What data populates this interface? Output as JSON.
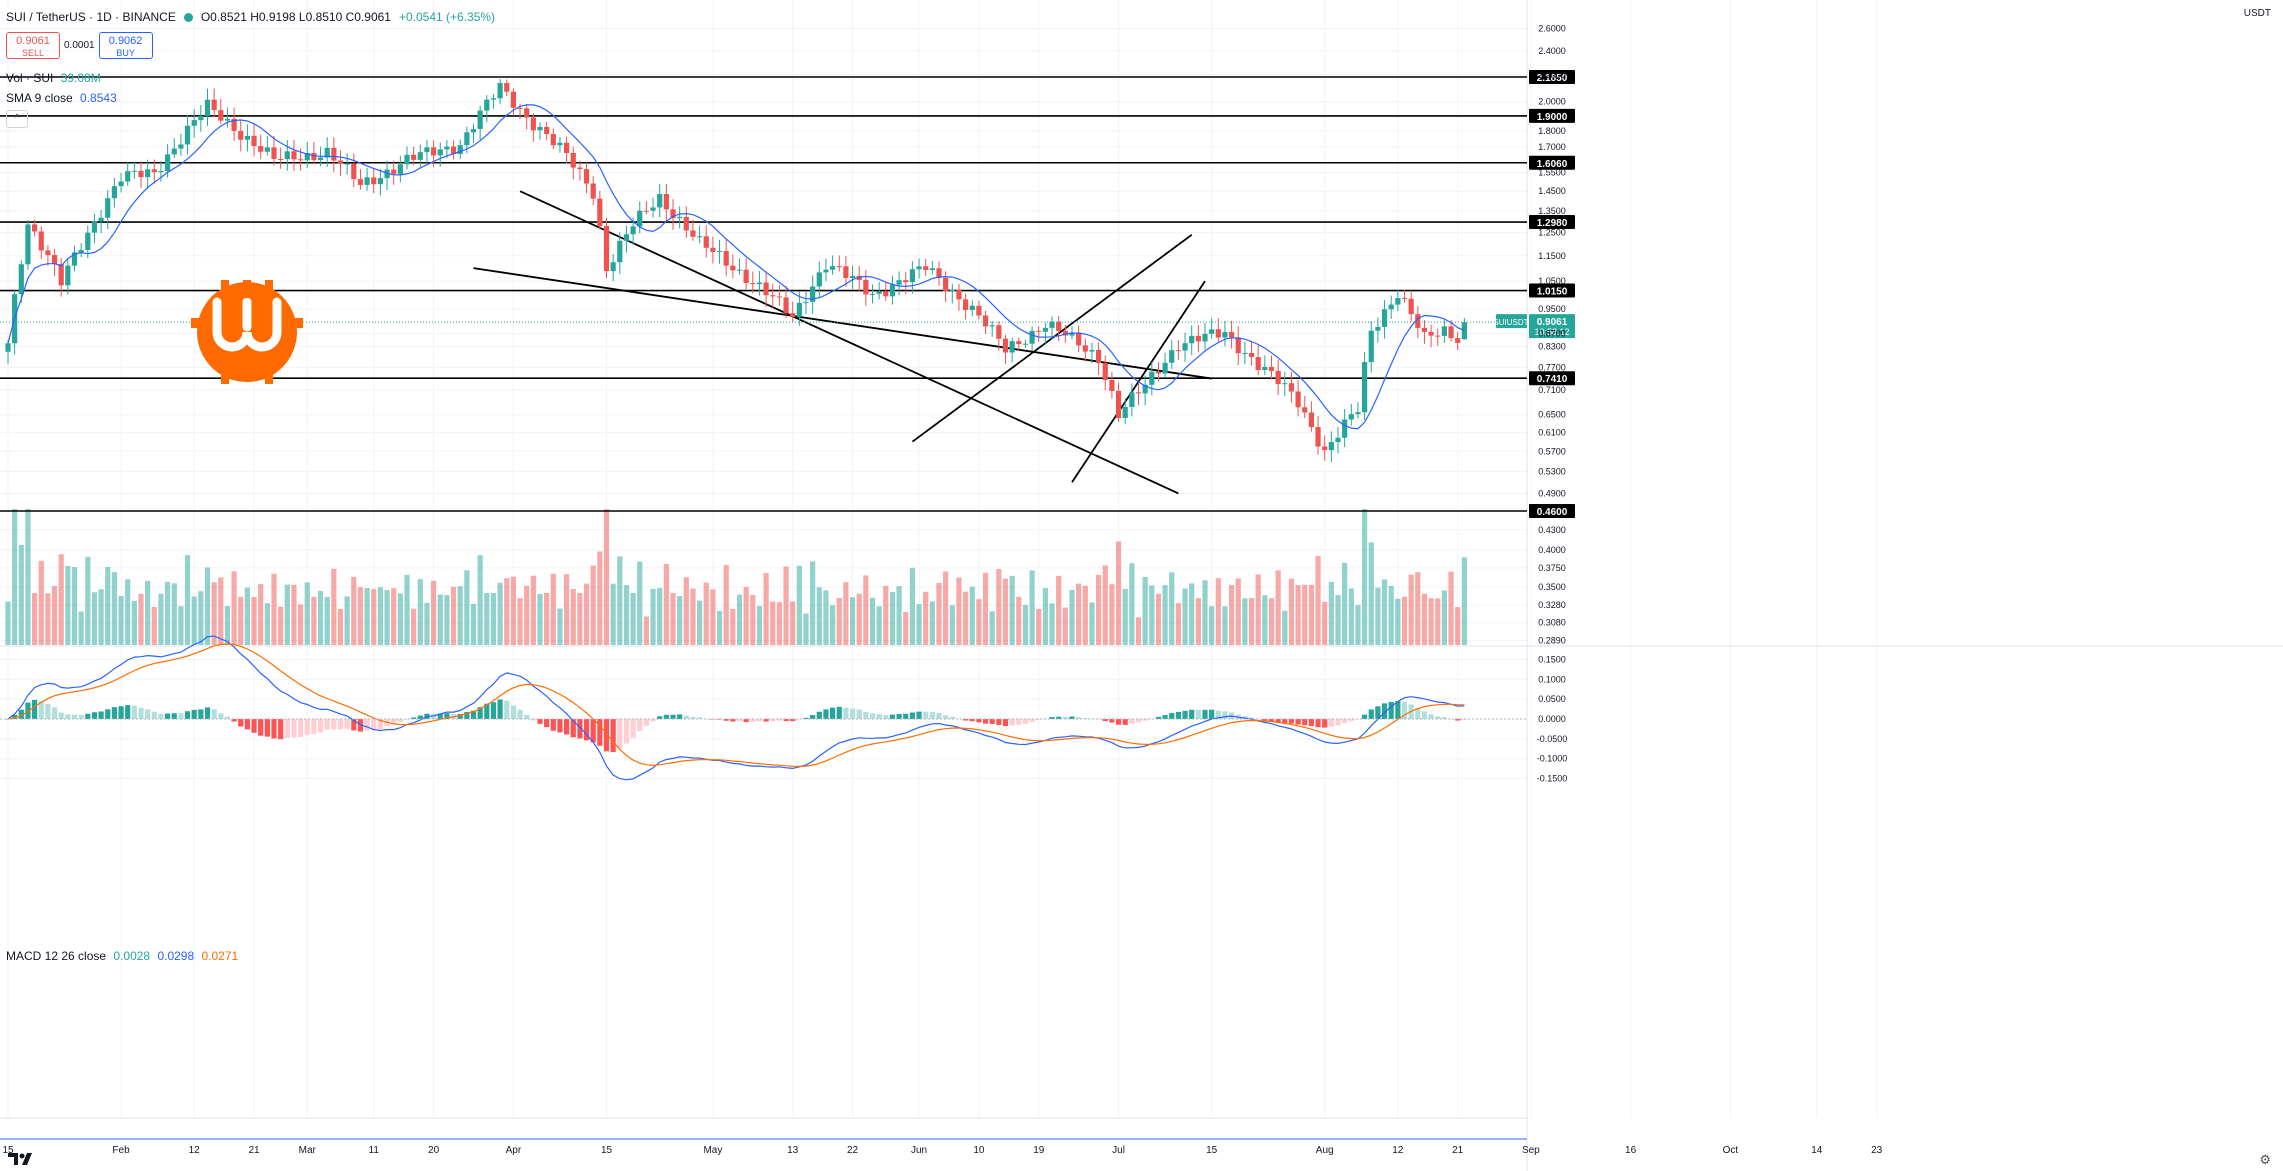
{
  "header": {
    "symbol": "SUI / TetherUS · 1D · BINANCE",
    "ohlc": "O0.8521 H0.9198 L0.8510 C0.9061",
    "change": "+0.0541 (+6.35%)"
  },
  "trade": {
    "sell_price": "0.9061",
    "sell_label": "SELL",
    "spread": "0.0001",
    "buy_price": "0.9062",
    "buy_label": "BUY"
  },
  "indicators": {
    "vol_label": "Vol · SUI",
    "vol_value": "39.08M",
    "sma_label": "SMA 9 close",
    "sma_value": "0.8543",
    "macd_label": "MACD 12 26 close",
    "macd_hist": "0.0028",
    "macd_line": "0.0298",
    "macd_signal": "0.0271"
  },
  "currency_label": "USDT",
  "colors": {
    "up": "#26a69a",
    "down": "#ef5350",
    "sma": "#2962ff",
    "signal": "#ff6d00",
    "logo": "#ff6a00"
  },
  "chart_data": {
    "type": "candlestick",
    "symbol": "SUIUSDT",
    "interval": "1D",
    "price_axis_ticks": [
      2.6,
      2.4,
      2.2,
      2.0,
      1.8,
      1.7,
      1.55,
      1.45,
      1.35,
      1.25,
      1.15,
      1.05,
      0.95,
      0.87,
      0.83,
      0.77,
      0.71,
      0.65,
      0.61,
      0.57,
      0.53,
      0.49,
      0.43,
      0.4,
      0.375,
      0.35,
      0.328,
      0.308,
      0.289
    ],
    "price_axis_labels": [
      "2.6000",
      "2.4000",
      "2.2000",
      "2.0000",
      "1.8000",
      "1.7000",
      "1.5500",
      "1.4500",
      "1.3500",
      "1.2500",
      "1.1500",
      "1.0500",
      "0.9500",
      "0.8700",
      "0.8300",
      "0.7700",
      "0.7100",
      "0.6500",
      "0.6100",
      "0.5700",
      "0.5300",
      "0.4900",
      "0.4300",
      "0.4000",
      "0.3750",
      "0.3500",
      "0.3280",
      "0.3080",
      "0.2890"
    ],
    "horizontal_levels": [
      "2.1850",
      "1.9000",
      "1.6060",
      "1.2980",
      "1.0150",
      "0.7410",
      "0.4600"
    ],
    "level_values": [
      2.185,
      1.9,
      1.606,
      1.298,
      1.015,
      0.741,
      0.46
    ],
    "current_price": {
      "symbol": "SUIUSDT",
      "price": "0.9061",
      "countdown": "10:58:12"
    },
    "macd_axis_labels": [
      "0.1500",
      "0.1000",
      "0.0500",
      "0.0000",
      "-0.0500",
      "-0.1000",
      "-0.1500"
    ],
    "macd_axis_values": [
      0.15,
      0.1,
      0.05,
      0.0,
      -0.05,
      -0.1,
      -0.15
    ],
    "x_axis": [
      {
        "label": "15",
        "day": 0
      },
      {
        "label": "Feb",
        "day": 17
      },
      {
        "label": "12",
        "day": 28
      },
      {
        "label": "21",
        "day": 37
      },
      {
        "label": "Mar",
        "day": 45
      },
      {
        "label": "11",
        "day": 55
      },
      {
        "label": "20",
        "day": 64
      },
      {
        "label": "Apr",
        "day": 76
      },
      {
        "label": "15",
        "day": 90
      },
      {
        "label": "May",
        "day": 106
      },
      {
        "label": "13",
        "day": 118
      },
      {
        "label": "22",
        "day": 127
      },
      {
        "label": "Jun",
        "day": 137
      },
      {
        "label": "10",
        "day": 146
      },
      {
        "label": "19",
        "day": 155
      },
      {
        "label": "Jul",
        "day": 167
      },
      {
        "label": "15",
        "day": 181
      },
      {
        "label": "Aug",
        "day": 198
      },
      {
        "label": "12",
        "day": 209
      },
      {
        "label": "21",
        "day": 218
      },
      {
        "label": "Sep",
        "day": 229
      },
      {
        "label": "16",
        "day": 244
      },
      {
        "label": "Oct",
        "day": 259
      },
      {
        "label": "14",
        "day": 272
      },
      {
        "label": "23",
        "day": 281
      }
    ],
    "key_points": [
      {
        "day": 0,
        "close": 0.84
      },
      {
        "day": 3,
        "close": 1.3
      },
      {
        "day": 8,
        "close": 1.04
      },
      {
        "day": 12,
        "close": 1.25
      },
      {
        "day": 17,
        "close": 1.52
      },
      {
        "day": 22,
        "close": 1.55
      },
      {
        "day": 30,
        "close": 1.96
      },
      {
        "day": 40,
        "close": 1.62
      },
      {
        "day": 48,
        "close": 1.67
      },
      {
        "day": 53,
        "close": 1.48
      },
      {
        "day": 60,
        "close": 1.62
      },
      {
        "day": 68,
        "close": 1.72
      },
      {
        "day": 74,
        "close": 2.1
      },
      {
        "day": 78,
        "close": 1.9
      },
      {
        "day": 84,
        "close": 1.64
      },
      {
        "day": 88,
        "close": 1.45
      },
      {
        "day": 90,
        "close": 1.1
      },
      {
        "day": 94,
        "close": 1.28
      },
      {
        "day": 98,
        "close": 1.42
      },
      {
        "day": 104,
        "close": 1.2
      },
      {
        "day": 112,
        "close": 1.05
      },
      {
        "day": 118,
        "close": 0.92
      },
      {
        "day": 123,
        "close": 1.12
      },
      {
        "day": 130,
        "close": 1.0
      },
      {
        "day": 138,
        "close": 1.1
      },
      {
        "day": 145,
        "close": 0.95
      },
      {
        "day": 150,
        "close": 0.82
      },
      {
        "day": 156,
        "close": 0.9
      },
      {
        "day": 164,
        "close": 0.8
      },
      {
        "day": 167,
        "close": 0.65
      },
      {
        "day": 171,
        "close": 0.72
      },
      {
        "day": 176,
        "close": 0.84
      },
      {
        "day": 183,
        "close": 0.87
      },
      {
        "day": 188,
        "close": 0.78
      },
      {
        "day": 194,
        "close": 0.68
      },
      {
        "day": 198,
        "close": 0.57
      },
      {
        "day": 203,
        "close": 0.66
      },
      {
        "day": 205,
        "close": 0.88
      },
      {
        "day": 209,
        "close": 1.01
      },
      {
        "day": 213,
        "close": 0.85
      },
      {
        "day": 216,
        "close": 0.88
      },
      {
        "day": 218,
        "close": 0.86
      },
      {
        "day": 219,
        "close": 0.9061
      }
    ]
  }
}
